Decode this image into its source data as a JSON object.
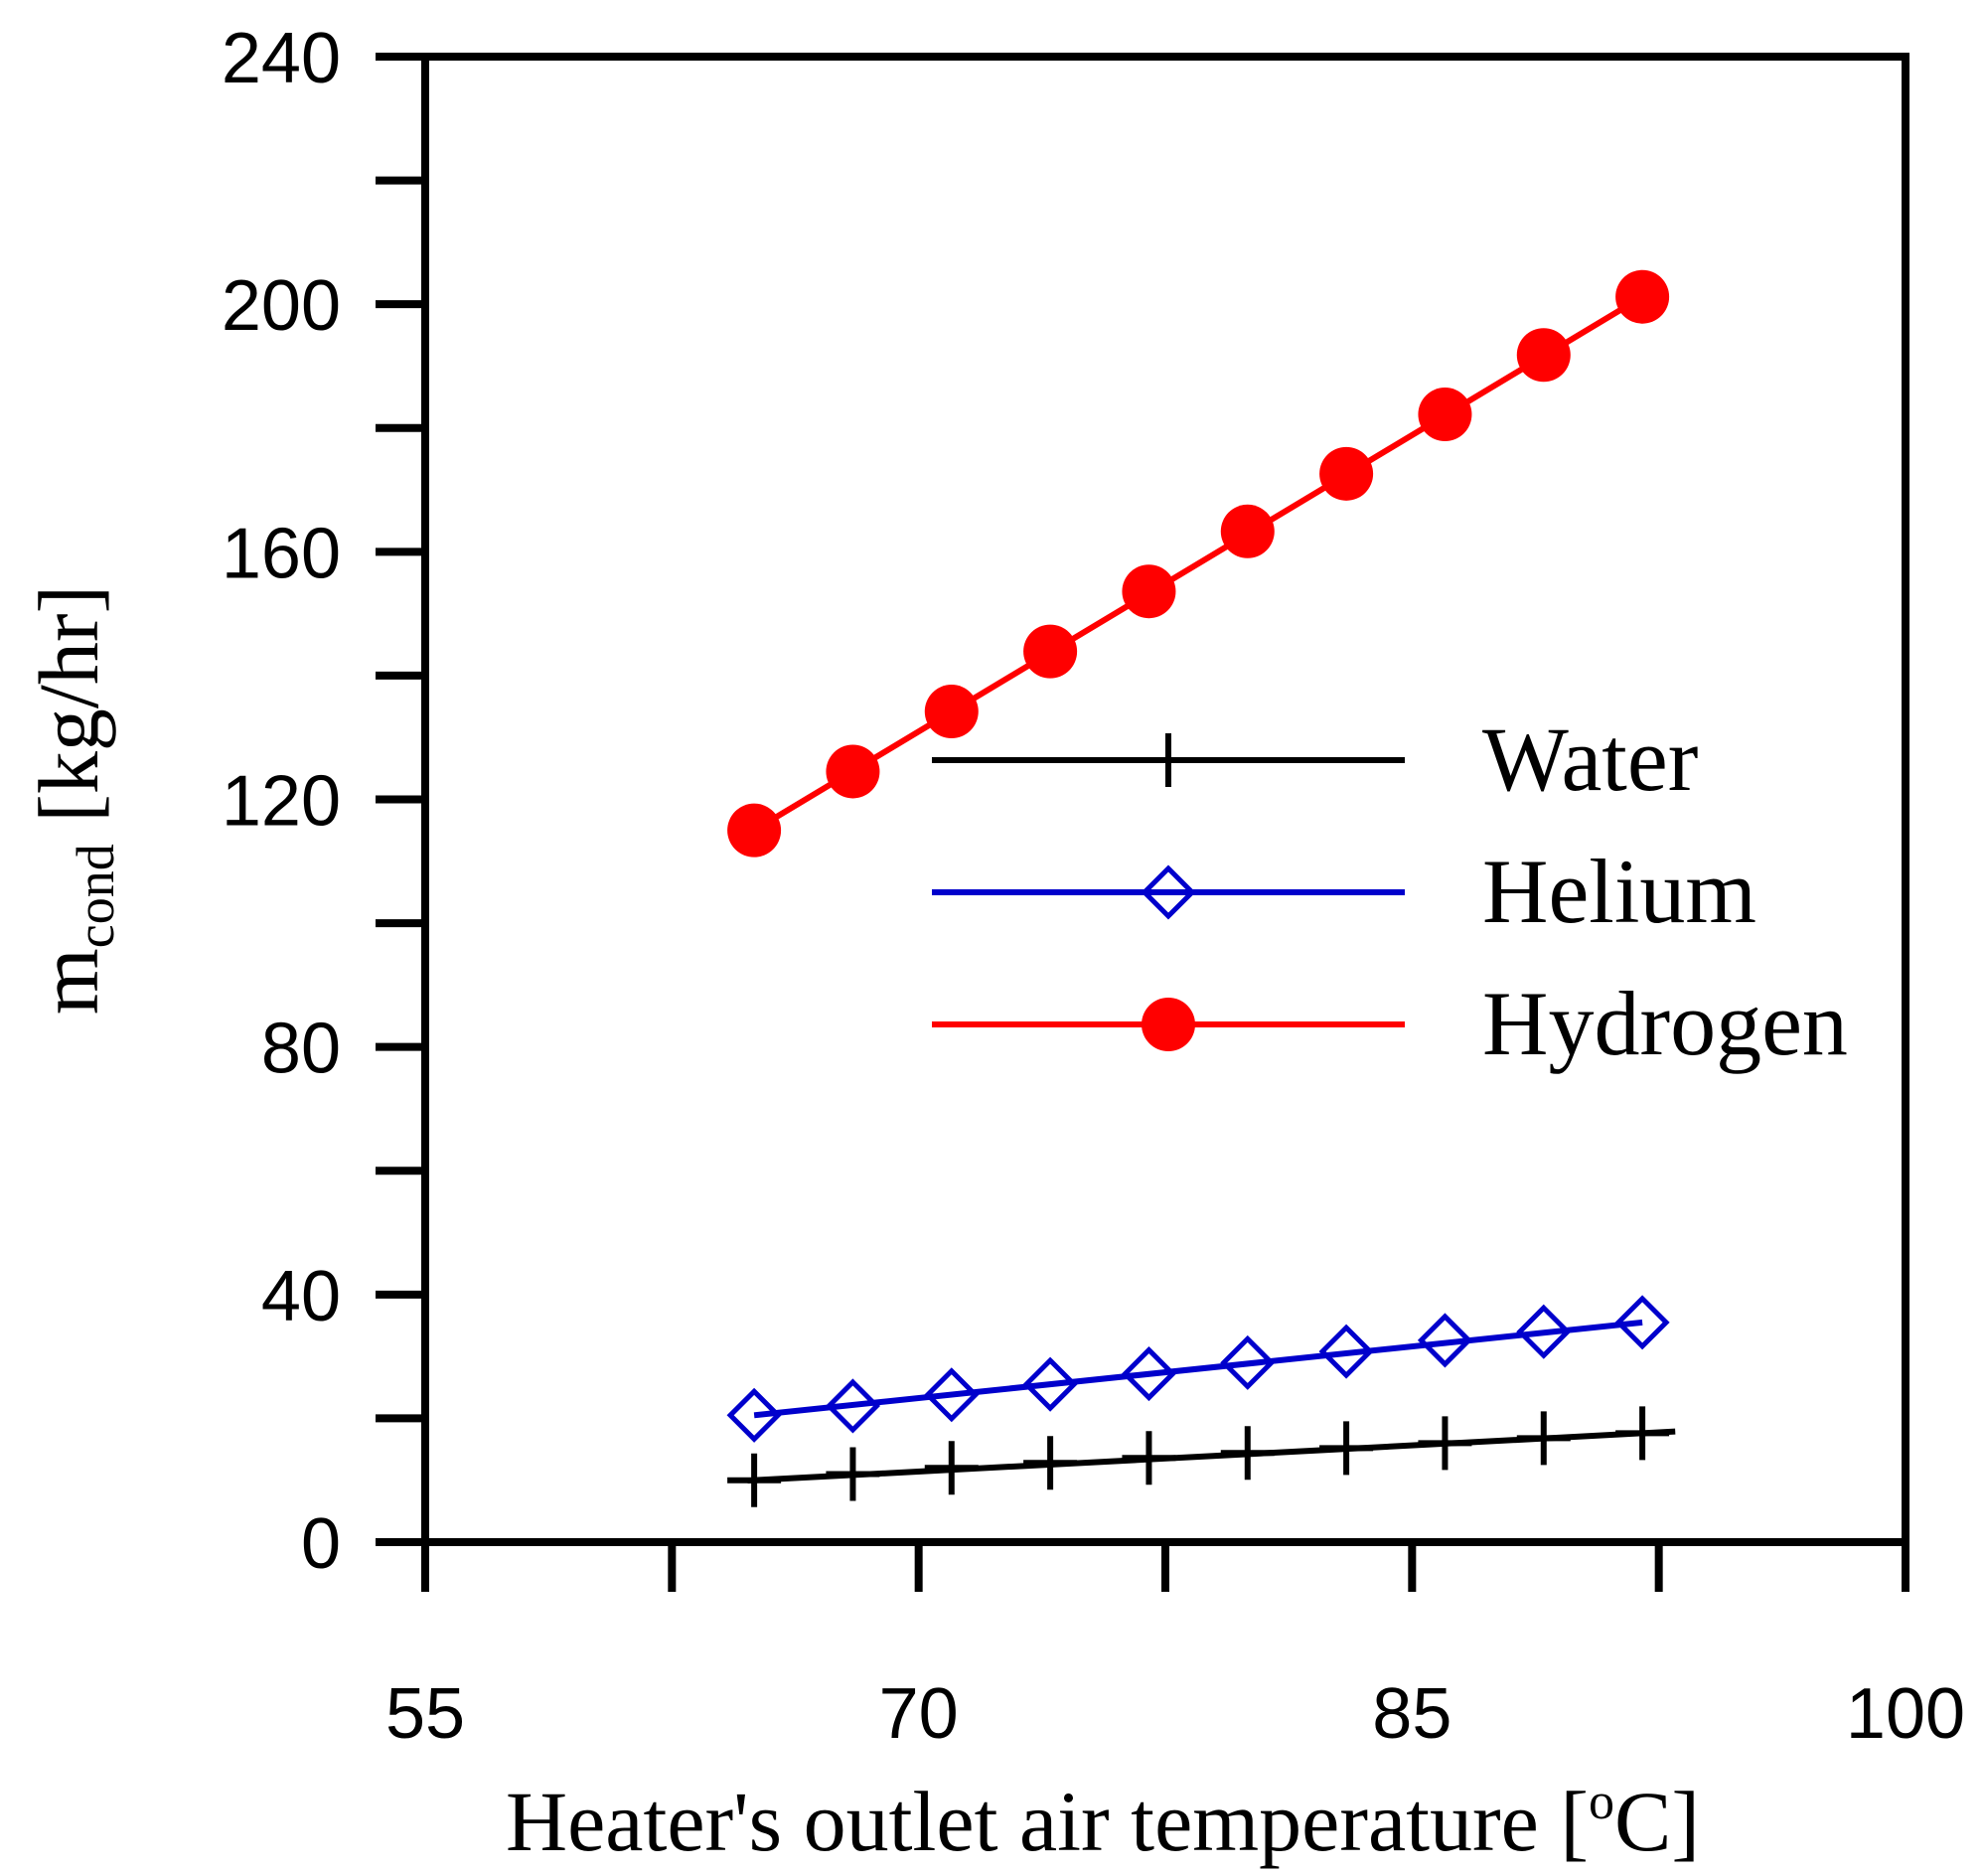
{
  "chart_data": {
    "type": "line",
    "xlabel": "Heater's outlet air temperature  [",
    "xlabel_sup": "o",
    "xlabel_unit": "C]",
    "ylabel_main": "m",
    "ylabel_sub": "cond",
    "ylabel_unit": " [kg/hr]",
    "xlim": [
      55,
      100
    ],
    "ylim": [
      0,
      240
    ],
    "x_ticks": [
      55,
      70,
      85,
      100
    ],
    "y_ticks": [
      0,
      40,
      80,
      120,
      160,
      200,
      240
    ],
    "x_minor_ticks": [
      62.5,
      77.5,
      92.5
    ],
    "y_minor_ticks": [
      20,
      60,
      100,
      140,
      180,
      220
    ],
    "x": [
      65,
      68,
      71,
      74,
      77,
      80,
      83,
      86,
      89,
      92
    ],
    "series": [
      {
        "name": "Water",
        "color": "#000000",
        "marker": "plus",
        "values": [
          10,
          11,
          12,
          12.8,
          13.6,
          14.4,
          15.2,
          16,
          16.8,
          17.6
        ],
        "line_x": [
          64.8,
          93
        ]
      },
      {
        "name": "Helium",
        "color": "#0000cc",
        "marker": "diamond",
        "values": [
          20.5,
          22,
          23.8,
          25.5,
          27.2,
          29,
          30.8,
          32.6,
          34,
          35.5
        ],
        "line_x": [
          65,
          92
        ]
      },
      {
        "name": "Hydrogen",
        "color": "#ff0000",
        "marker": "circle",
        "values": [
          115,
          124.5,
          134.2,
          143.9,
          153.6,
          163.3,
          172.6,
          182.2,
          191.8,
          201.2
        ],
        "line_x": [
          65,
          92
        ]
      }
    ],
    "legend_position": "center-right"
  }
}
